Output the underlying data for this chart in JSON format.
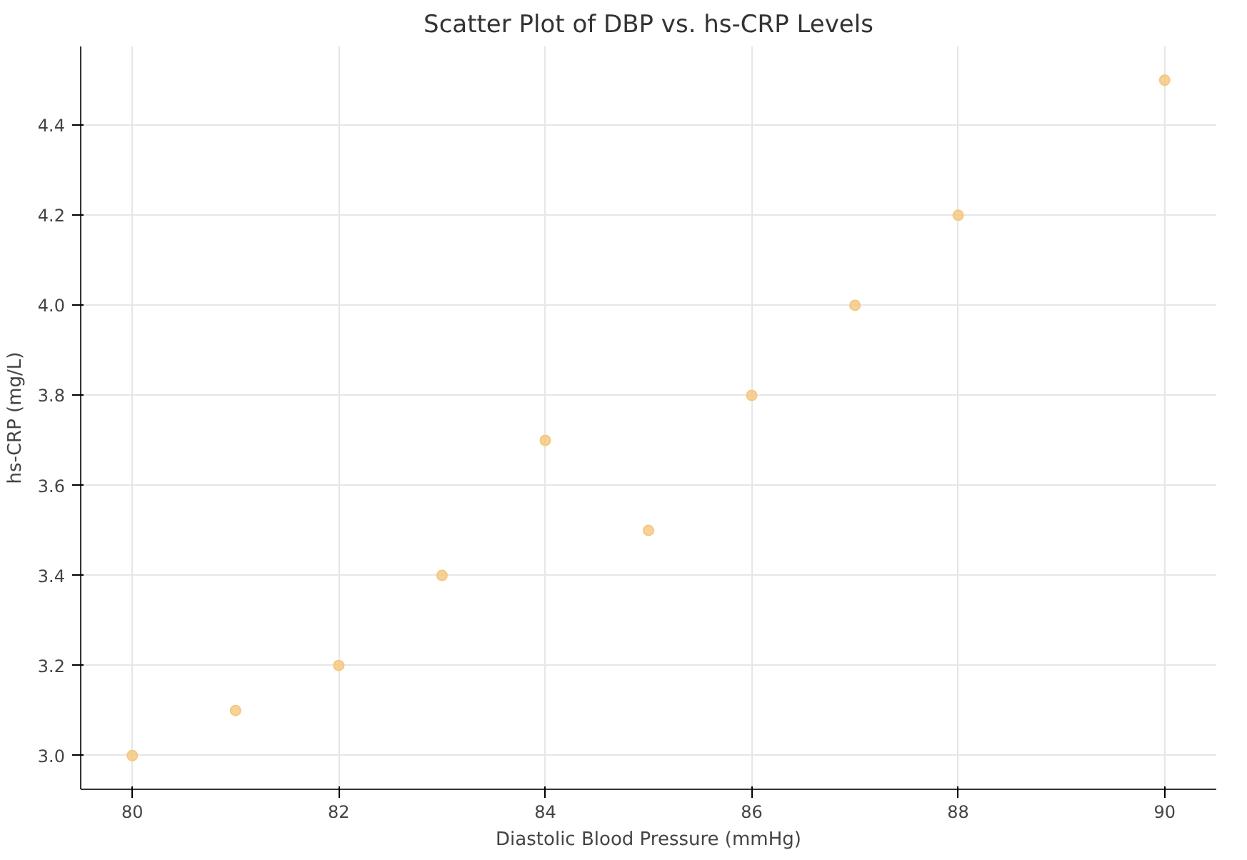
{
  "chart_data": {
    "type": "scatter",
    "title": "Scatter Plot of DBP vs. hs-CRP Levels",
    "xlabel": "Diastolic Blood Pressure (mmHg)",
    "ylabel": "hs-CRP (mg/L)",
    "x": [
      80,
      81,
      82,
      83,
      84,
      85,
      86,
      87,
      88,
      90
    ],
    "series": [
      {
        "color": "#f5c77e",
        "values": [
          3.0,
          3.1,
          3.2,
          3.4,
          3.7,
          3.5,
          3.8,
          4.0,
          4.2,
          4.5
        ]
      }
    ],
    "xlim": [
      79.5,
      90.5
    ],
    "ylim": [
      2.925,
      4.575
    ],
    "xticks": [
      80,
      82,
      84,
      86,
      88,
      90
    ],
    "yticks": [
      {
        "value": 3.0,
        "label": "3.0"
      },
      {
        "value": 3.2,
        "label": "3.2"
      },
      {
        "value": 3.4,
        "label": "3.4"
      },
      {
        "value": 3.6,
        "label": "3.6"
      },
      {
        "value": 3.8,
        "label": "3.8"
      },
      {
        "value": 4.0,
        "label": "4.0"
      },
      {
        "value": 4.2,
        "label": "4.2"
      },
      {
        "value": 4.4,
        "label": "4.4"
      }
    ],
    "grid": true,
    "marker": "circle"
  }
}
